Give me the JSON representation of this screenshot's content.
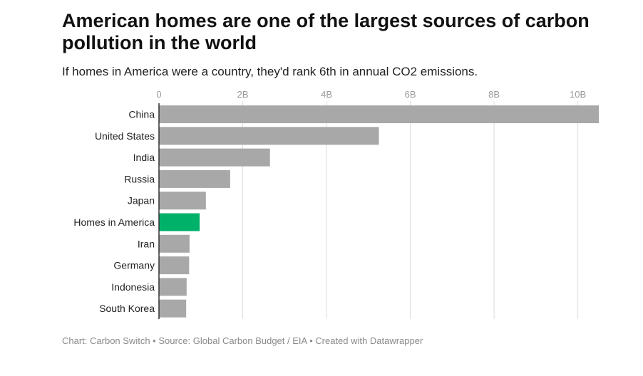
{
  "title": "American homes are one of the largest sources of carbon pollution in the world",
  "subtitle": "If homes in America were a country, they'd rank 6th in annual CO2 emissions.",
  "footer": {
    "chart_credit": "Chart: Carbon Switch",
    "source": "Source: Global Carbon Budget / EIA",
    "tool": "Created with Datawrapper",
    "separator": " • "
  },
  "colors": {
    "bar": "#a8a8a8",
    "highlight": "#00b16a",
    "grid": "#dcdcdc",
    "axis": "#333333"
  },
  "chart_data": {
    "type": "bar",
    "orientation": "horizontal",
    "title": "American homes are one of the largest sources of carbon pollution in the world",
    "subtitle": "If homes in America were a country, they'd rank 6th in annual CO2 emissions.",
    "xlabel": "",
    "ylabel": "",
    "xlim": [
      0,
      10.5
    ],
    "x_ticks": [
      0,
      2,
      4,
      6,
      8,
      10
    ],
    "x_tick_labels": [
      "0",
      "2B",
      "4B",
      "6B",
      "8B",
      "10B"
    ],
    "axis_position": "top",
    "grid": true,
    "categories": [
      "China",
      "United States",
      "India",
      "Russia",
      "Japan",
      "Homes in America",
      "Iran",
      "Germany",
      "Indonesia",
      "South Korea"
    ],
    "values": [
      10.5,
      5.25,
      2.65,
      1.7,
      1.12,
      0.97,
      0.73,
      0.72,
      0.66,
      0.65
    ],
    "unit": "billion tonnes CO2",
    "highlight": "Homes in America"
  }
}
